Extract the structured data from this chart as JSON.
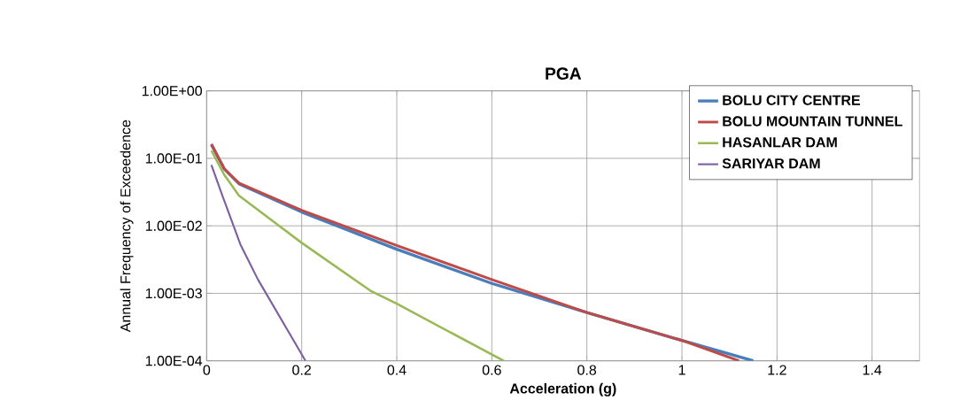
{
  "chart_data": {
    "type": "line",
    "title": "PGA",
    "xlabel": "Acceleration (g)",
    "ylabel": "Annual Frequency of Exceedence",
    "log": "y",
    "grid": true,
    "legend": "top right",
    "marker": "none",
    "line_style": "solid",
    "xlim": [
      0,
      1.5
    ],
    "ylim": [
      0.0001,
      1
    ],
    "xticks": [
      0,
      0.2,
      0.4,
      0.6,
      0.8,
      1,
      1.2,
      1.4
    ],
    "yticks": [
      {
        "value": 1,
        "label": "1.00E+00"
      },
      {
        "value": 0.1,
        "label": "1.00E-01"
      },
      {
        "value": 0.01,
        "label": "1.00E-02"
      },
      {
        "value": 0.001,
        "label": "1.00E-03"
      },
      {
        "value": 0.0001,
        "label": "1.00E-04"
      }
    ],
    "series": [
      {
        "name": "BOLU CITY CENTRE",
        "color": "#4a7ebb",
        "x": [
          0.01,
          0.037,
          0.068,
          0.2,
          0.4,
          0.6,
          0.8,
          1.0,
          1.15
        ],
        "values": [
          0.16,
          0.07,
          0.042,
          0.016,
          0.0045,
          0.0014,
          0.00052,
          0.0002,
          0.0001
        ]
      },
      {
        "name": "BOLU MOUNTAIN TUNNEL",
        "color": "#be4b48",
        "x": [
          0.01,
          0.037,
          0.068,
          0.2,
          0.4,
          0.6,
          0.8,
          1.0,
          1.12
        ],
        "values": [
          0.163,
          0.07,
          0.043,
          0.017,
          0.0051,
          0.0016,
          0.00052,
          0.0002,
          0.0001
        ]
      },
      {
        "name": "HASANLAR DAM",
        "color": "#98b954",
        "x": [
          0.01,
          0.037,
          0.068,
          0.2,
          0.344,
          0.4,
          0.625
        ],
        "values": [
          0.13,
          0.057,
          0.028,
          0.0056,
          0.0011,
          0.0007,
          0.0001
        ]
      },
      {
        "name": "SARIYAR DAM",
        "color": "#7d60a0",
        "x": [
          0.01,
          0.034,
          0.071,
          0.108,
          0.208
        ],
        "values": [
          0.08,
          0.027,
          0.0053,
          0.0016,
          0.0001
        ]
      }
    ]
  }
}
